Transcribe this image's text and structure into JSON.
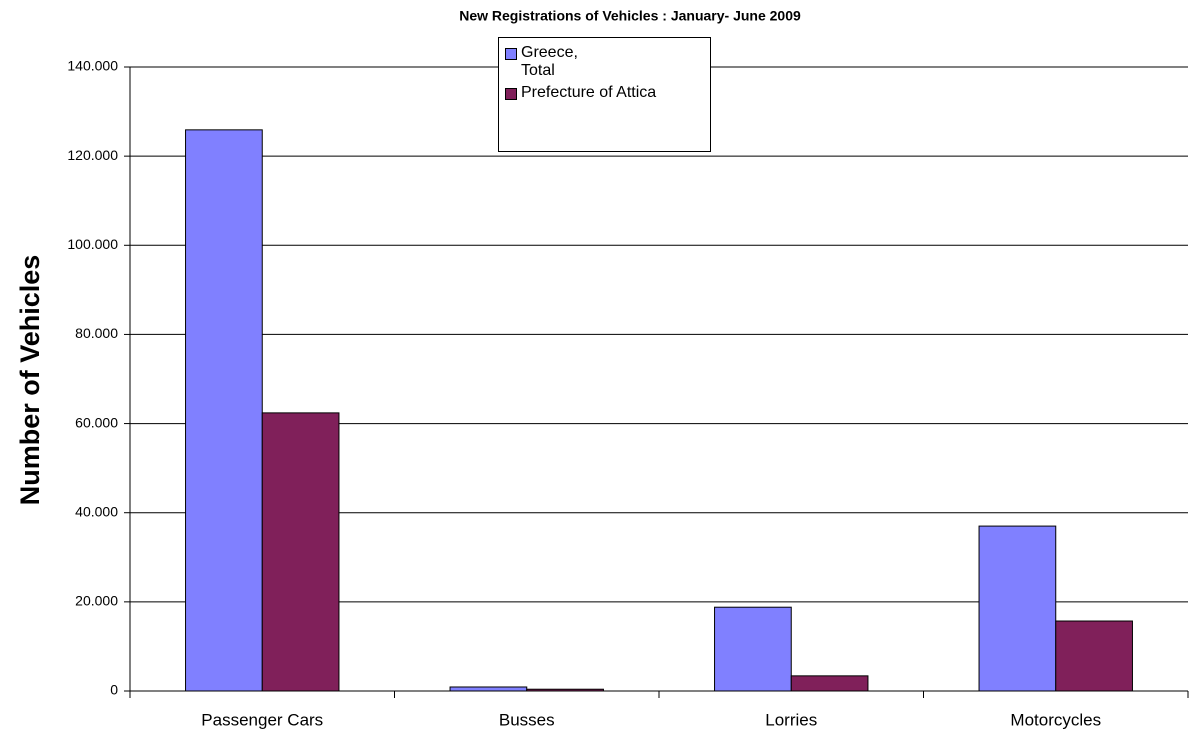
{
  "chart_data": {
    "type": "bar",
    "title": "New Registrations of Vehicles : January- June 2009",
    "y_label": "Number of Vehicles",
    "categories": [
      "Passenger Cars",
      "Busses",
      "Lorries",
      "Motorcycles"
    ],
    "series": [
      {
        "name": "Greece, Total",
        "color": "#8080ff",
        "values": [
          125900,
          900,
          18800,
          37000
        ]
      },
      {
        "name": "Prefecture of Attica",
        "color": "#80205a",
        "values": [
          62400,
          400,
          3400,
          15700
        ]
      }
    ],
    "ylim": [
      0,
      140000
    ],
    "yticks": [
      0,
      {
        "value": 20000,
        "label": "20.000"
      },
      {
        "value": 40000,
        "label": "40.000"
      },
      {
        "value": 60000,
        "label": "60.000"
      },
      {
        "value": 80000,
        "label": "80.000"
      },
      {
        "value": 100000,
        "label": "100.000"
      },
      {
        "value": 120000,
        "label": "120.000"
      },
      {
        "value": 140000,
        "label": "140.000"
      }
    ],
    "grid": true
  }
}
